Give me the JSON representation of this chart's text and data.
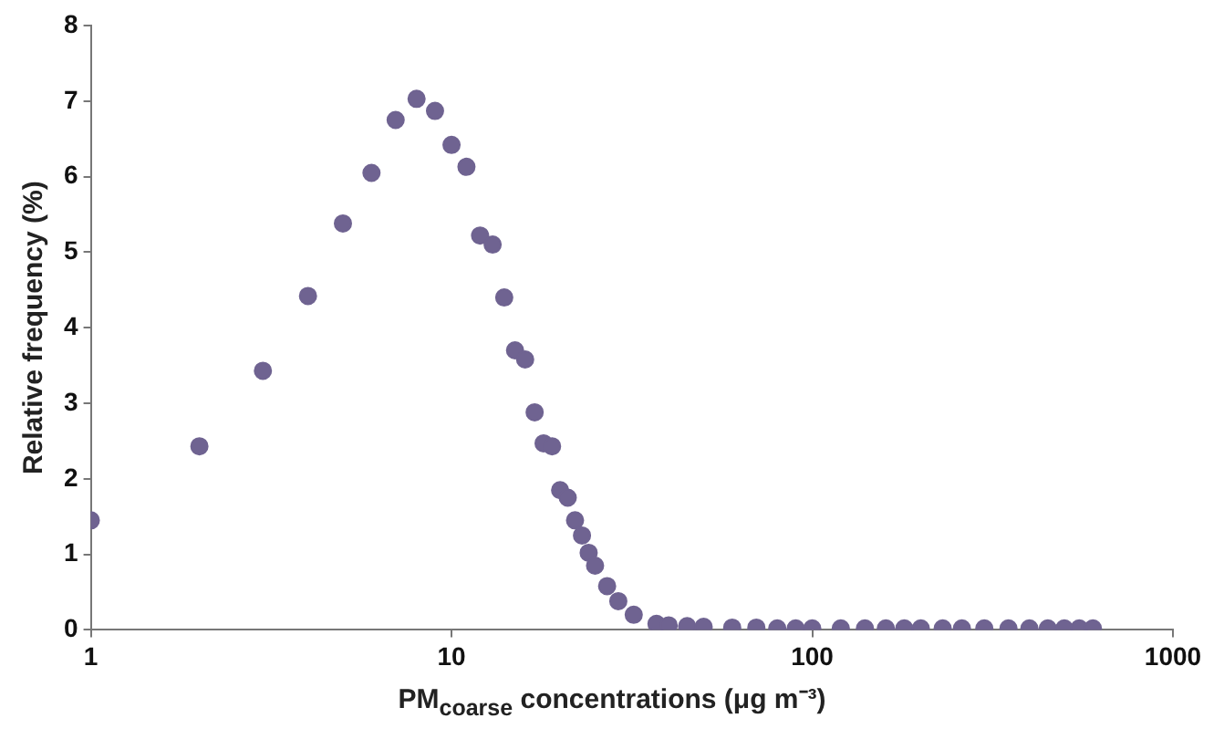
{
  "chart_data": {
    "type": "scatter",
    "xlabel": "PM$_{coarse}$ concentrations (μg m⁻³)",
    "ylabel": "Relative frequency (%)",
    "x": [
      1,
      2,
      3,
      4,
      5,
      6,
      7,
      8,
      9,
      10,
      11,
      12,
      13,
      14,
      15,
      16,
      17,
      18,
      19,
      20,
      21,
      22,
      23,
      24,
      25,
      27,
      29,
      32,
      37,
      40,
      45,
      50,
      60,
      70,
      80,
      90,
      100,
      120,
      140,
      160,
      180,
      200,
      230,
      260,
      300,
      350,
      400,
      450,
      500,
      550,
      600
    ],
    "series": [
      {
        "color": "#6f6391",
        "values": [
          1.45,
          2.43,
          3.43,
          4.42,
          5.38,
          6.05,
          6.75,
          7.03,
          6.87,
          6.42,
          6.13,
          5.22,
          5.1,
          4.4,
          3.7,
          3.58,
          2.88,
          2.47,
          2.43,
          1.85,
          1.75,
          1.45,
          1.25,
          1.02,
          0.85,
          0.58,
          0.38,
          0.2,
          0.08,
          0.06,
          0.05,
          0.04,
          0.03,
          0.03,
          0.02,
          0.02,
          0.02,
          0.02,
          0.02,
          0.02,
          0.02,
          0.02,
          0.02,
          0.02,
          0.02,
          0.02,
          0.02,
          0.02,
          0.02,
          0.02,
          0.02
        ]
      }
    ],
    "log": "x",
    "xlim": [
      1,
      1000
    ],
    "xticks": [
      1,
      10,
      100,
      1000
    ],
    "ylim": [
      0,
      8
    ],
    "yticks": [
      0,
      1,
      2,
      3,
      4,
      5,
      6,
      7,
      8
    ],
    "grid": false,
    "legend": false,
    "marker": "circle"
  }
}
